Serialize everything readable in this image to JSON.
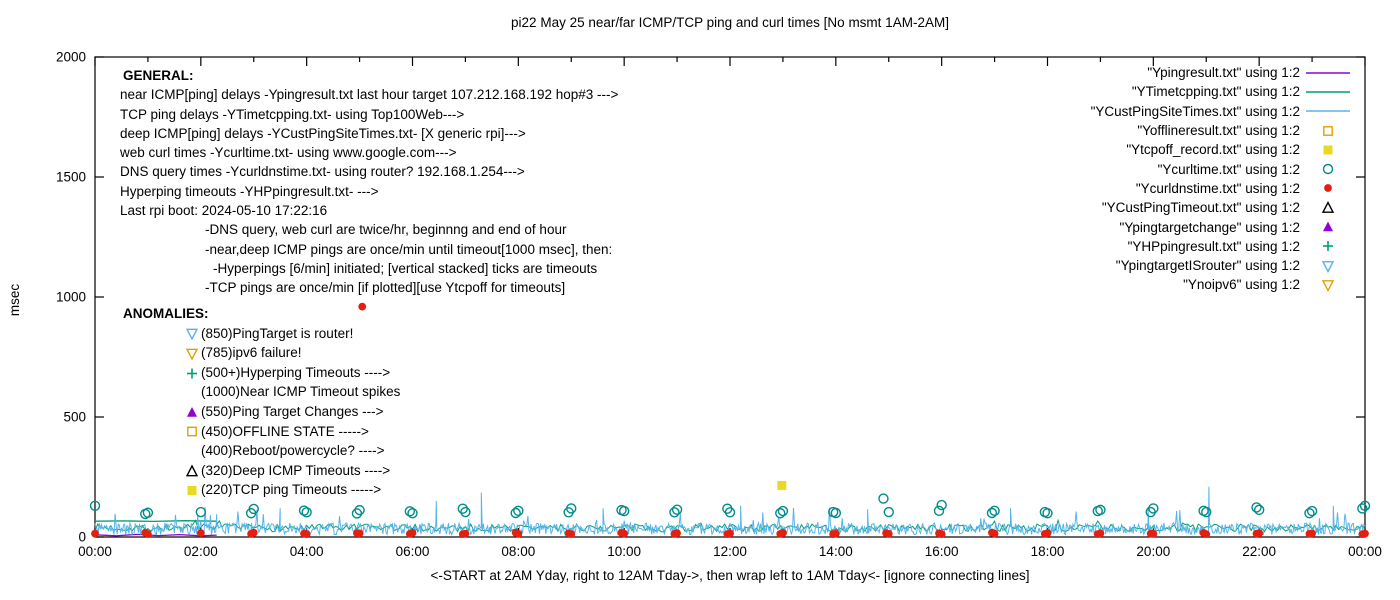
{
  "chart_data": {
    "type": "scatter",
    "title": "pi22 May 25  near/far ICMP/TCP ping and curl times [No msmt 1AM-2AM]",
    "xlabel": "<-START at 2AM Yday, right to 12AM Tday->, then wrap left to 1AM Tday<- [ignore connecting lines]",
    "ylabel": "msec",
    "xlim_hours": [
      0,
      24
    ],
    "ylim": [
      0,
      2000
    ],
    "yticks": [
      0,
      500,
      1000,
      1500,
      2000
    ],
    "xticks": [
      {
        "h": 0,
        "label": "00:00"
      },
      {
        "h": 2,
        "label": "02:00"
      },
      {
        "h": 4,
        "label": "04:00"
      },
      {
        "h": 6,
        "label": "06:00"
      },
      {
        "h": 8,
        "label": "08:00"
      },
      {
        "h": 10,
        "label": "10:00"
      },
      {
        "h": 12,
        "label": "12:00"
      },
      {
        "h": 14,
        "label": "14:00"
      },
      {
        "h": 16,
        "label": "16:00"
      },
      {
        "h": 18,
        "label": "18:00"
      },
      {
        "h": 20,
        "label": "20:00"
      },
      {
        "h": 22,
        "label": "22:00"
      },
      {
        "h": 24,
        "label": "00:00"
      }
    ],
    "legend_position": "top-right",
    "series": [
      {
        "name": "near-icmp-ping",
        "label": "\"Ypingresult.txt\" using 1:2",
        "color": "#9400d3",
        "marker": "line",
        "points": [
          [
            0,
            9
          ],
          [
            0.4,
            5
          ],
          [
            0.8,
            11
          ],
          [
            1.2,
            6
          ],
          [
            1.6,
            10
          ],
          [
            2.0,
            5
          ],
          [
            2.3,
            8
          ]
        ]
      },
      {
        "name": "tcp-ping",
        "label": "\"YTimetcpping.txt\" using 1:2",
        "color": "#009e73",
        "marker": "line",
        "noise": {
          "baseline": 22,
          "amplitude": 32,
          "step_hours": 0.05,
          "start": 0,
          "end": 24,
          "seed": 7,
          "spike_chance": 0.02,
          "spike_extra": 40
        },
        "segments": [
          [
            [
              0,
              66
            ],
            [
              0.55,
              67
            ],
            [
              1.1,
              65
            ],
            [
              1.7,
              68
            ],
            [
              2.3,
              66
            ]
          ]
        ]
      },
      {
        "name": "deep-icmp-ping",
        "label": "\"YCustPingSiteTimes.txt\" using 1:2",
        "color": "#56b4e9",
        "marker": "line",
        "noise": {
          "baseline": 10,
          "amplitude": 48,
          "step_hours": 0.02,
          "start": 0,
          "end": 24,
          "seed": 12345,
          "spike_chance": 0.05,
          "spike_extra": 80
        },
        "spikes": [
          [
            2.3,
            95
          ],
          [
            3.5,
            120
          ],
          [
            6.45,
            150
          ],
          [
            7.3,
            185
          ],
          [
            9.6,
            120
          ],
          [
            12.2,
            130
          ],
          [
            14.6,
            115
          ],
          [
            17.3,
            120
          ],
          [
            19.9,
            125
          ],
          [
            21.05,
            210
          ],
          [
            23.4,
            130
          ]
        ]
      },
      {
        "name": "offline-state",
        "label": "\"Yofflineresult.txt\" using 1:2",
        "color": "#e69f00",
        "marker": "open-square",
        "points": []
      },
      {
        "name": "tcp-off-record",
        "label": "\"Ytcpoff_record.txt\" using 1:2",
        "color": "#e8d923",
        "marker": "filled-square",
        "points": [
          [
            12.98,
            215
          ]
        ]
      },
      {
        "name": "web-curl-time",
        "label": "\"Ycurltime.txt\" using 1:2",
        "color": "#008b8b",
        "marker": "open-circle",
        "points": [
          [
            0,
            130
          ],
          [
            0.95,
            96
          ],
          [
            1,
            101
          ],
          [
            2,
            104
          ],
          [
            2.95,
            99
          ],
          [
            3,
            117
          ],
          [
            3.95,
            110
          ],
          [
            4,
            103
          ],
          [
            4.95,
            98
          ],
          [
            5,
            112
          ],
          [
            5.95,
            107
          ],
          [
            6,
            99
          ],
          [
            6.95,
            118
          ],
          [
            7,
            104
          ],
          [
            7.95,
            100
          ],
          [
            8,
            109
          ],
          [
            8.95,
            103
          ],
          [
            9,
            119
          ],
          [
            9.95,
            112
          ],
          [
            10,
            108
          ],
          [
            10.95,
            103
          ],
          [
            11,
            114
          ],
          [
            11.95,
            118
          ],
          [
            12,
            103
          ],
          [
            12.95,
            99
          ],
          [
            13,
            108
          ],
          [
            13.95,
            104
          ],
          [
            14,
            100
          ],
          [
            14.9,
            160
          ],
          [
            15,
            104
          ],
          [
            15.95,
            109
          ],
          [
            16,
            133
          ],
          [
            16.95,
            100
          ],
          [
            17,
            109
          ],
          [
            17.95,
            104
          ],
          [
            18,
            99
          ],
          [
            18.95,
            108
          ],
          [
            19,
            113
          ],
          [
            19.95,
            104
          ],
          [
            20,
            119
          ],
          [
            20.95,
            109
          ],
          [
            21,
            104
          ],
          [
            21.95,
            123
          ],
          [
            22,
            113
          ],
          [
            22.95,
            99
          ],
          [
            23,
            108
          ],
          [
            23.95,
            119
          ],
          [
            24,
            130
          ]
        ]
      },
      {
        "name": "dns-query-time",
        "label": "\"Ycurldnstime.txt\" using 1:2",
        "color": "#e51e10",
        "marker": "filled-circle",
        "points": [
          [
            0,
            14
          ],
          [
            0.95,
            18
          ],
          [
            1,
            12
          ],
          [
            2,
            16
          ],
          [
            2.95,
            13
          ],
          [
            3,
            18
          ],
          [
            3.95,
            14
          ],
          [
            4,
            12
          ],
          [
            4.95,
            16
          ],
          [
            5,
            15
          ],
          [
            5.05,
            960
          ],
          [
            5.95,
            13
          ],
          [
            6,
            17
          ],
          [
            6.95,
            12
          ],
          [
            7,
            14
          ],
          [
            7.95,
            18
          ],
          [
            8,
            13
          ],
          [
            8.95,
            15
          ],
          [
            9,
            12
          ],
          [
            9.95,
            17
          ],
          [
            10,
            14
          ],
          [
            10.95,
            13
          ],
          [
            11,
            16
          ],
          [
            11.95,
            12
          ],
          [
            12,
            15
          ],
          [
            12.95,
            13
          ],
          [
            13,
            17
          ],
          [
            13.95,
            12
          ],
          [
            14,
            14
          ],
          [
            14.95,
            16
          ],
          [
            15,
            13
          ],
          [
            15.95,
            15
          ],
          [
            16,
            12
          ],
          [
            16.95,
            18
          ],
          [
            17,
            14
          ],
          [
            17.95,
            13
          ],
          [
            18,
            16
          ],
          [
            18.95,
            12
          ],
          [
            19,
            15
          ],
          [
            19.95,
            14
          ],
          [
            20,
            13
          ],
          [
            20.95,
            17
          ],
          [
            21,
            12
          ],
          [
            21.95,
            14
          ],
          [
            22,
            16
          ],
          [
            22.95,
            13
          ],
          [
            23,
            15
          ],
          [
            23.95,
            12
          ],
          [
            24,
            14
          ]
        ]
      },
      {
        "name": "deep-icmp-timeout",
        "label": "\"YCustPingTimeout.txt\" using 1:2",
        "color": "#000000",
        "marker": "open-triangle",
        "points": []
      },
      {
        "name": "ping-target-change",
        "label": "\"Ypingtargetchange\" using 1:2",
        "color": "#9400d3",
        "marker": "filled-triangle",
        "points": []
      },
      {
        "name": "hyperping-timeout",
        "label": "\"YHPpingresult.txt\" using 1:2",
        "color": "#009e73",
        "marker": "plus",
        "points": []
      },
      {
        "name": "ping-target-is-router",
        "label": "\"YpingtargetISrouter\" using 1:2",
        "color": "#56b4e9",
        "marker": "open-inv-triangle",
        "points": []
      },
      {
        "name": "no-ipv6",
        "label": "\"Ynoipv6\" using 1:2",
        "color": "#e69f00",
        "marker": "open-inv-triangle",
        "points": []
      }
    ]
  },
  "annotations": {
    "general": {
      "heading": "GENERAL:",
      "lines": [
        {
          "indent": 0,
          "text": "near ICMP[ping] delays -Ypingresult.txt last hour target 107.212.168.192 hop#3 --->"
        },
        {
          "indent": 0,
          "text": "TCP ping delays -YTimetcpping.txt- using Top100Web--->"
        },
        {
          "indent": 0,
          "text": "deep ICMP[ping] delays -YCustPingSiteTimes.txt- [X generic rpi]--->"
        },
        {
          "indent": 0,
          "text": "web curl times -Ycurltime.txt- using www.google.com--->"
        },
        {
          "indent": 0,
          "text": "DNS query times -Ycurldnstime.txt- using router? 192.168.1.254--->"
        },
        {
          "indent": 0,
          "text": "Hyperping timeouts -YHPpingresult.txt- --->"
        },
        {
          "indent": 0,
          "text": "Last rpi boot: 2024-05-10 17:22:16"
        },
        {
          "indent": 1,
          "text": "-DNS query, web curl are twice/hr, beginnng and end of hour"
        },
        {
          "indent": 1,
          "text": "-near,deep ICMP pings are once/min until timeout[1000 msec], then:"
        },
        {
          "indent": 2,
          "text": "-Hyperpings [6/min] initiated; [vertical stacked] ticks are timeouts"
        },
        {
          "indent": 1,
          "text": "-TCP pings are once/min [if plotted][use Ytcpoff for timeouts]"
        }
      ]
    },
    "anomalies": {
      "heading": "ANOMALIES:",
      "items": [
        {
          "marker": "open-inv-triangle",
          "color": "#56b4e9",
          "text": "(850)PingTarget is router!"
        },
        {
          "marker": "open-inv-triangle",
          "color": "#e69f00",
          "text": "(785)ipv6 failure!"
        },
        {
          "marker": "plus",
          "color": "#009e73",
          "text": "(500+)Hyperping Timeouts ---->"
        },
        {
          "marker": "none",
          "color": "",
          "text": "(1000)Near ICMP Timeout spikes"
        },
        {
          "marker": "filled-triangle",
          "color": "#9400d3",
          "text": "(550)Ping Target Changes --->"
        },
        {
          "marker": "open-square",
          "color": "#e69f00",
          "text": "(450)OFFLINE STATE ----->"
        },
        {
          "marker": "none",
          "color": "",
          "text": "(400)Reboot/powercycle? ---->"
        },
        {
          "marker": "open-triangle",
          "color": "#000000",
          "text": "(320)Deep ICMP Timeouts ---->"
        },
        {
          "marker": "filled-square",
          "color": "#e8d923",
          "text": "(220)TCP ping Timeouts ----->"
        }
      ]
    }
  }
}
